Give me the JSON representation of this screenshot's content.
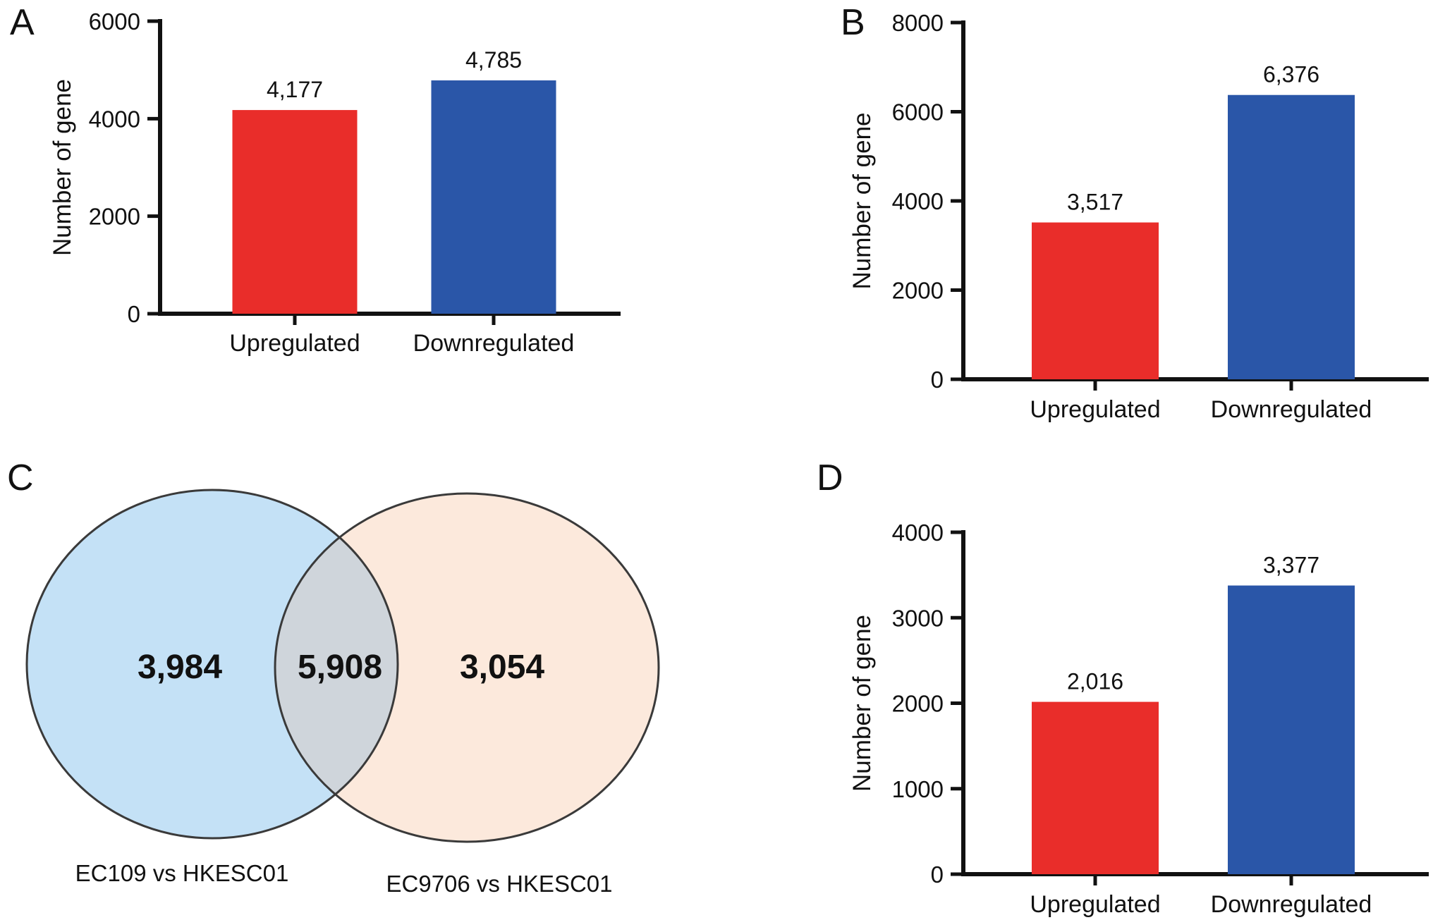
{
  "figure": {
    "background": "#ffffff",
    "text_color": "#111111",
    "panel_letters": [
      "A",
      "B",
      "C",
      "D"
    ]
  },
  "colors": {
    "upregulated_bar": "#e92d2a",
    "downregulated_bar": "#2a56a8",
    "axis": "#111111",
    "venn_outline": "#3a3a3a"
  },
  "chart_data": [
    {
      "panel": "A",
      "type": "bar",
      "categories": [
        "Upregulated",
        "Downregulated"
      ],
      "values": [
        4177,
        4785
      ],
      "value_labels": [
        "4,177",
        "4,785"
      ],
      "bar_colors": [
        "#e92d2a",
        "#2a56a8"
      ],
      "title": "",
      "xlabel": "",
      "ylabel": "Number of gene",
      "ylim": [
        0,
        6000
      ],
      "yticks": [
        0,
        2000,
        4000,
        6000
      ],
      "ytick_labels": [
        "0",
        "2000",
        "4000",
        "6000"
      ],
      "grid": false,
      "legend": "none"
    },
    {
      "panel": "B",
      "type": "bar",
      "categories": [
        "Upregulated",
        "Downregulated"
      ],
      "values": [
        3517,
        6376
      ],
      "value_labels": [
        "3,517",
        "6,376"
      ],
      "bar_colors": [
        "#e92d2a",
        "#2a56a8"
      ],
      "title": "",
      "xlabel": "",
      "ylabel": "Number of gene",
      "ylim": [
        0,
        8000
      ],
      "yticks": [
        0,
        2000,
        4000,
        6000,
        8000
      ],
      "ytick_labels": [
        "0",
        "2000",
        "4000",
        "6000",
        "8000"
      ],
      "grid": false,
      "legend": "none"
    },
    {
      "panel": "C",
      "type": "venn",
      "sets": [
        {
          "label": "EC109 vs HKESC01",
          "unique_count": "3,984",
          "fill": "#c4e1f6"
        },
        {
          "label": "EC9706 vs HKESC01",
          "unique_count": "3,054",
          "fill": "#fce9dc"
        }
      ],
      "intersection_count": "5,908",
      "intersection_fill": "#cfd5db",
      "outline_color": "#3a3a3a"
    },
    {
      "panel": "D",
      "type": "bar",
      "categories": [
        "Upregulated",
        "Downregulated"
      ],
      "values": [
        2016,
        3377
      ],
      "value_labels": [
        "2,016",
        "3,377"
      ],
      "bar_colors": [
        "#e92d2a",
        "#2a56a8"
      ],
      "title": "",
      "xlabel": "",
      "ylabel": "Number of gene",
      "ylim": [
        0,
        4000
      ],
      "yticks": [
        0,
        1000,
        2000,
        3000,
        4000
      ],
      "ytick_labels": [
        "0",
        "1000",
        "2000",
        "3000",
        "4000"
      ],
      "grid": false,
      "legend": "none"
    }
  ]
}
